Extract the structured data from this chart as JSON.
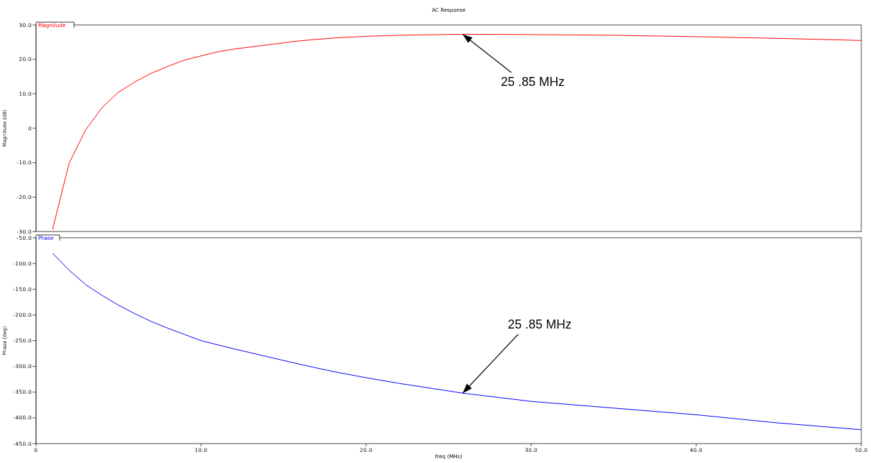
{
  "chart_data": [
    {
      "type": "line",
      "title": "AC Response",
      "ylabel": "Magnitude (dB)",
      "legend": "top left",
      "grid": false,
      "tick_labels": "y",
      "xlim": [
        0,
        50
      ],
      "ylim": [
        -30,
        30
      ],
      "yticks": [
        {
          "value": -30,
          "label": "-30.0"
        },
        {
          "value": -20,
          "label": "-20.0"
        },
        {
          "value": -10,
          "label": "-10.0"
        },
        0,
        {
          "value": 10,
          "label": "10.0"
        },
        {
          "value": 20,
          "label": "20.0"
        },
        {
          "value": 30,
          "label": "30.0"
        }
      ],
      "x": [
        1,
        2,
        3,
        4,
        5,
        6,
        7,
        8,
        9,
        10,
        11,
        12,
        14,
        16,
        18,
        20,
        22,
        25.85,
        30,
        35,
        40,
        45,
        50
      ],
      "series": [
        {
          "name": "Magnitude",
          "color": "#ff0000",
          "values": [
            -29.4,
            -10.2,
            -0.5,
            6,
            10.5,
            13.5,
            16,
            18,
            19.8,
            21,
            22.2,
            23,
            24.2,
            25.4,
            26.2,
            26.7,
            27,
            27.3,
            27.2,
            27,
            26.6,
            26.1,
            25.5
          ]
        }
      ],
      "annotations": [
        {
          "text": "25 .85  MHz",
          "x": 25.85,
          "y": 27.3
        }
      ]
    },
    {
      "type": "line",
      "xlabel": "freq (MHz)",
      "ylabel": "Phase (deg)",
      "legend": "top left",
      "grid": false,
      "xlim": [
        0,
        50
      ],
      "ylim": [
        -450,
        -50
      ],
      "xticks": [
        0,
        {
          "value": 10,
          "label": "10.0"
        },
        {
          "value": 20,
          "label": "20.0"
        },
        {
          "value": 30,
          "label": "30.0"
        },
        {
          "value": 40,
          "label": "40.0"
        },
        {
          "value": 50,
          "label": "50.0"
        }
      ],
      "yticks": [
        {
          "value": -450,
          "label": "-450.0"
        },
        {
          "value": -400,
          "label": "-400.0"
        },
        {
          "value": -350,
          "label": "-350.0"
        },
        {
          "value": -300,
          "label": "-300.0"
        },
        {
          "value": -250,
          "label": "-250.0"
        },
        {
          "value": -200,
          "label": "-200.0"
        },
        {
          "value": -150,
          "label": "-150.0"
        },
        {
          "value": -100,
          "label": "-100.0"
        },
        {
          "value": -50,
          "label": "-50.0"
        }
      ],
      "x": [
        1,
        2,
        3,
        4,
        5,
        6,
        7,
        8,
        9,
        10,
        12,
        14,
        16,
        18,
        20,
        22,
        25.85,
        30,
        35,
        40,
        45,
        50
      ],
      "series": [
        {
          "name": "Phase",
          "color": "#0000ff",
          "values": [
            -80,
            -113,
            -141,
            -162,
            -181,
            -198,
            -213,
            -226,
            -238,
            -250,
            -266,
            -281,
            -296,
            -310,
            -322,
            -333,
            -352,
            -368,
            -381,
            -394,
            -410,
            -423
          ]
        }
      ],
      "annotations": [
        {
          "text": "25 .85  MHz",
          "x": 25.85,
          "y": -352
        }
      ]
    }
  ]
}
